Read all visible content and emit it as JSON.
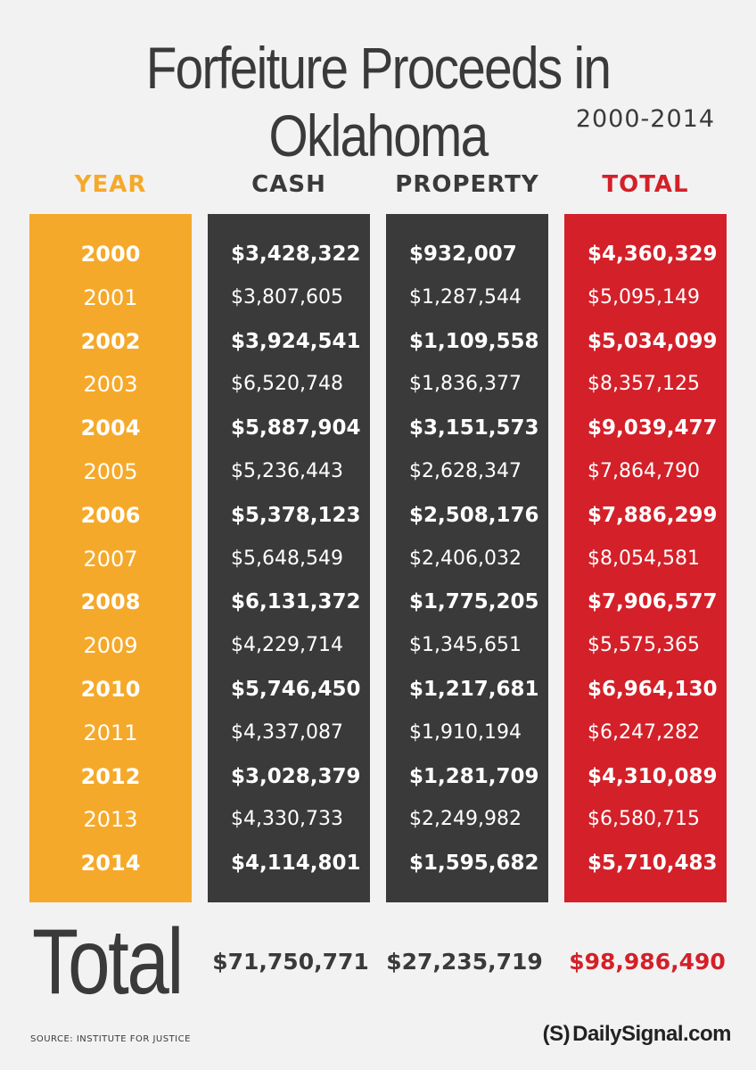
{
  "title": "Forfeiture Proceeds in Oklahoma",
  "subtitle": "2000-2014",
  "headers": {
    "year": "YEAR",
    "cash": "CASH",
    "property": "PROPERTY",
    "total": "TOTAL"
  },
  "colors": {
    "year": "#f5a92a",
    "cash": "#3a3a3a",
    "property": "#3a3a3a",
    "total": "#d42029",
    "text_dark": "#3a3a3a"
  },
  "chart_data": {
    "type": "table",
    "title": "Forfeiture Proceeds in Oklahoma",
    "subtitle": "2000-2014",
    "columns": [
      "YEAR",
      "CASH",
      "PROPERTY",
      "TOTAL"
    ],
    "rows": [
      {
        "year": "2000",
        "cash": "$3,428,322",
        "property": "$932,007",
        "total": "$4,360,329"
      },
      {
        "year": "2001",
        "cash": "$3,807,605",
        "property": "$1,287,544",
        "total": "$5,095,149"
      },
      {
        "year": "2002",
        "cash": "$3,924,541",
        "property": "$1,109,558",
        "total": "$5,034,099"
      },
      {
        "year": "2003",
        "cash": "$6,520,748",
        "property": "$1,836,377",
        "total": "$8,357,125"
      },
      {
        "year": "2004",
        "cash": "$5,887,904",
        "property": "$3,151,573",
        "total": "$9,039,477"
      },
      {
        "year": "2005",
        "cash": "$5,236,443",
        "property": "$2,628,347",
        "total": "$7,864,790"
      },
      {
        "year": "2006",
        "cash": "$5,378,123",
        "property": "$2,508,176",
        "total": "$7,886,299"
      },
      {
        "year": "2007",
        "cash": "$5,648,549",
        "property": "$2,406,032",
        "total": "$8,054,581"
      },
      {
        "year": "2008",
        "cash": "$6,131,372",
        "property": "$1,775,205",
        "total": "$7,906,577"
      },
      {
        "year": "2009",
        "cash": "$4,229,714",
        "property": "$1,345,651",
        "total": "$5,575,365"
      },
      {
        "year": "2010",
        "cash": "$5,746,450",
        "property": "$1,217,681",
        "total": "$6,964,130"
      },
      {
        "year": "2011",
        "cash": "$4,337,087",
        "property": "$1,910,194",
        "total": "$6,247,282"
      },
      {
        "year": "2012",
        "cash": "$3,028,379",
        "property": "$1,281,709",
        "total": "$4,310,089"
      },
      {
        "year": "2013",
        "cash": "$4,330,733",
        "property": "$2,249,982",
        "total": "$6,580,715"
      },
      {
        "year": "2014",
        "cash": "$4,114,801",
        "property": "$1,595,682",
        "total": "$5,710,483"
      }
    ],
    "totals": {
      "label": "Total",
      "cash": "$71,750,771",
      "property": "$27,235,719",
      "total": "$98,986,490"
    }
  },
  "source": "SOURCE: INSTITUTE FOR JUSTICE",
  "brand": {
    "logo": "(S)",
    "name": "DailySignal.com"
  }
}
